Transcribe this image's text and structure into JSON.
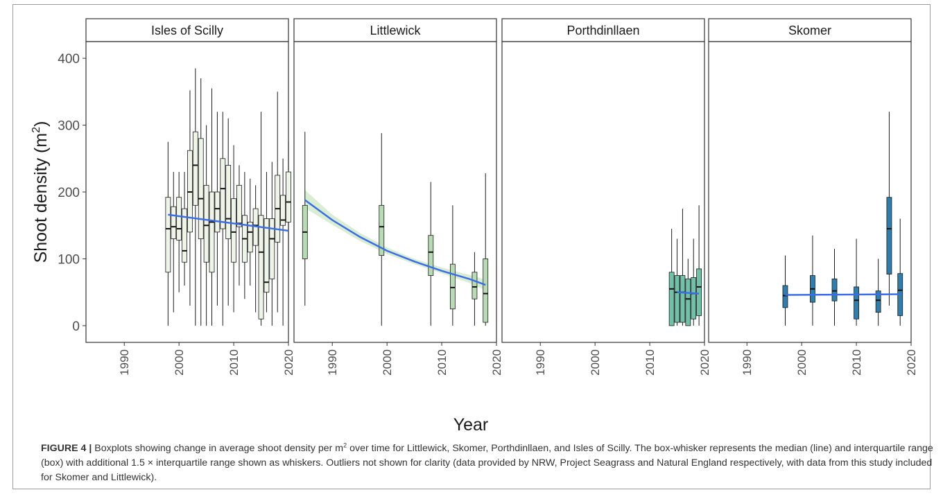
{
  "figure": {
    "ylabel": "Shoot density (m",
    "ylabel_sup": "2",
    "ylabel_close": ")",
    "xlabel": "Year"
  },
  "caption": {
    "label": "FIGURE 4 |",
    "text1": " Boxplots showing change in average shoot density per m",
    "sup": "2",
    "text2": " over time for Littlewick, Skomer, Porthdinllaen, and Isles of Scilly. The box-whisker represents the median (line) and interquartile range (box) with additional 1.5 × interquartile range shown as whiskers. Outliers not shown for clarity (data provided by NRW, Project Seagrass and Natural England respectively, with data from this study included for Skomer and Littlewick)."
  },
  "colors": {
    "trend": "#3a6ee8",
    "ribbon": "#cfe8c8",
    "Isles of Scilly": "#eef4e8",
    "Littlewick": "#b7dcb4",
    "Porthdinllaen": "#6fc2a8",
    "Skomer": "#2e7fae"
  },
  "chart_data": {
    "type": "box",
    "xlabel": "Year",
    "ylabel": "Shoot density (m2)",
    "xlim": [
      1983,
      2020
    ],
    "ylim": [
      -25,
      425
    ],
    "x_ticks": [
      1990,
      2000,
      2010,
      2020
    ],
    "y_ticks": [
      0,
      100,
      200,
      300,
      400
    ],
    "grid": false,
    "panels": [
      {
        "name": "Isles of Scilly",
        "boxes": [
          {
            "x": 1998,
            "min": 0,
            "q1": 80,
            "median": 145,
            "q3": 192,
            "max": 275
          },
          {
            "x": 1999,
            "min": 20,
            "q1": 130,
            "median": 148,
            "q3": 178,
            "max": 230
          },
          {
            "x": 2000,
            "min": 50,
            "q1": 128,
            "median": 145,
            "q3": 192,
            "max": 230
          },
          {
            "x": 2001,
            "min": 60,
            "q1": 95,
            "median": 112,
            "q3": 175,
            "max": 230
          },
          {
            "x": 2002,
            "min": 30,
            "q1": 140,
            "median": 200,
            "q3": 262,
            "max": 352
          },
          {
            "x": 2003,
            "min": 0,
            "q1": 180,
            "median": 240,
            "q3": 290,
            "max": 385
          },
          {
            "x": 2004,
            "min": 0,
            "q1": 130,
            "median": 190,
            "q3": 280,
            "max": 370
          },
          {
            "x": 2005,
            "min": 0,
            "q1": 95,
            "median": 150,
            "q3": 210,
            "max": 300
          },
          {
            "x": 2006,
            "min": 0,
            "q1": 80,
            "median": 155,
            "q3": 200,
            "max": 355
          },
          {
            "x": 2007,
            "min": 30,
            "q1": 140,
            "median": 175,
            "q3": 200,
            "max": 320
          },
          {
            "x": 2008,
            "min": 0,
            "q1": 145,
            "median": 205,
            "q3": 250,
            "max": 320
          },
          {
            "x": 2009,
            "min": 30,
            "q1": 130,
            "median": 160,
            "q3": 240,
            "max": 310
          },
          {
            "x": 2010,
            "min": 20,
            "q1": 95,
            "median": 140,
            "q3": 190,
            "max": 270
          },
          {
            "x": 2011,
            "min": 60,
            "q1": 148,
            "median": 153,
            "q3": 210,
            "max": 240
          },
          {
            "x": 2012,
            "min": 40,
            "q1": 95,
            "median": 130,
            "q3": 165,
            "max": 230
          },
          {
            "x": 2013,
            "min": 60,
            "q1": 110,
            "median": 140,
            "q3": 155,
            "max": 220
          },
          {
            "x": 2014,
            "min": 20,
            "q1": 120,
            "median": 150,
            "q3": 175,
            "max": 210
          },
          {
            "x": 2015,
            "min": 0,
            "q1": 10,
            "median": 110,
            "q3": 165,
            "max": 320
          },
          {
            "x": 2016,
            "min": 20,
            "q1": 50,
            "median": 65,
            "q3": 160,
            "max": 230
          },
          {
            "x": 2017,
            "min": 0,
            "q1": 70,
            "median": 130,
            "q3": 160,
            "max": 245
          },
          {
            "x": 2018,
            "min": 20,
            "q1": 125,
            "median": 175,
            "q3": 225,
            "max": 350
          },
          {
            "x": 2019,
            "min": 0,
            "q1": 150,
            "median": 158,
            "q3": 195,
            "max": 250
          },
          {
            "x": 2020,
            "min": 80,
            "q1": 155,
            "median": 185,
            "q3": 230,
            "max": 275
          }
        ],
        "trend": [
          {
            "x": 1998,
            "y": 166
          },
          {
            "x": 2020,
            "y": 142
          }
        ],
        "ribbon": null
      },
      {
        "name": "Littlewick",
        "boxes": [
          {
            "x": 1985,
            "min": 30,
            "q1": 100,
            "median": 140,
            "q3": 180,
            "max": 290
          },
          {
            "x": 1999,
            "min": 0,
            "q1": 105,
            "median": 148,
            "q3": 180,
            "max": 288
          },
          {
            "x": 2008,
            "min": 0,
            "q1": 75,
            "median": 110,
            "q3": 135,
            "max": 215
          },
          {
            "x": 2012,
            "min": 0,
            "q1": 25,
            "median": 57,
            "q3": 92,
            "max": 180
          },
          {
            "x": 2016,
            "min": 0,
            "q1": 40,
            "median": 58,
            "q3": 80,
            "max": 110
          },
          {
            "x": 2018,
            "min": 0,
            "q1": 5,
            "median": 48,
            "q3": 100,
            "max": 228
          }
        ],
        "trend": [
          {
            "x": 1985,
            "y": 188
          },
          {
            "x": 1990,
            "y": 158
          },
          {
            "x": 1995,
            "y": 133
          },
          {
            "x": 2000,
            "y": 112
          },
          {
            "x": 2005,
            "y": 96
          },
          {
            "x": 2010,
            "y": 82
          },
          {
            "x": 2015,
            "y": 70
          },
          {
            "x": 2018,
            "y": 61
          }
        ],
        "ribbon": [
          {
            "x": 1985,
            "lo": 176,
            "hi": 203
          },
          {
            "x": 1990,
            "lo": 151,
            "hi": 166
          },
          {
            "x": 1995,
            "lo": 127,
            "hi": 139
          },
          {
            "x": 2000,
            "lo": 107,
            "hi": 117
          },
          {
            "x": 2005,
            "lo": 92,
            "hi": 100
          },
          {
            "x": 2010,
            "lo": 78,
            "hi": 87
          },
          {
            "x": 2015,
            "lo": 64,
            "hi": 76
          },
          {
            "x": 2018,
            "lo": 53,
            "hi": 69
          }
        ]
      },
      {
        "name": "Porthdinllaen",
        "boxes": [
          {
            "x": 2014,
            "min": 0,
            "q1": 0,
            "median": 55,
            "q3": 80,
            "max": 145
          },
          {
            "x": 2015,
            "min": 0,
            "q1": 5,
            "median": 50,
            "q3": 75,
            "max": 130
          },
          {
            "x": 2016,
            "min": 0,
            "q1": 5,
            "median": 50,
            "q3": 75,
            "max": 175
          },
          {
            "x": 2017,
            "min": 0,
            "q1": 0,
            "median": 40,
            "q3": 70,
            "max": 100
          },
          {
            "x": 2018,
            "min": 0,
            "q1": 10,
            "median": 48,
            "q3": 72,
            "max": 130
          },
          {
            "x": 2019,
            "min": 0,
            "q1": 15,
            "median": 58,
            "q3": 85,
            "max": 180
          }
        ],
        "trend": [
          {
            "x": 2015,
            "y": 50
          },
          {
            "x": 2019,
            "y": 48
          }
        ],
        "ribbon": null
      },
      {
        "name": "Skomer",
        "boxes": [
          {
            "x": 1997,
            "min": 0,
            "q1": 27,
            "median": 45,
            "q3": 60,
            "max": 105
          },
          {
            "x": 2002,
            "min": 0,
            "q1": 35,
            "median": 55,
            "q3": 75,
            "max": 135
          },
          {
            "x": 2006,
            "min": 0,
            "q1": 37,
            "median": 52,
            "q3": 70,
            "max": 115
          },
          {
            "x": 2010,
            "min": 0,
            "q1": 10,
            "median": 38,
            "q3": 58,
            "max": 130
          },
          {
            "x": 2014,
            "min": 0,
            "q1": 20,
            "median": 38,
            "q3": 52,
            "max": 100
          },
          {
            "x": 2016,
            "min": 30,
            "q1": 77,
            "median": 145,
            "q3": 192,
            "max": 320
          },
          {
            "x": 2018,
            "min": 0,
            "q1": 15,
            "median": 53,
            "q3": 78,
            "max": 160
          }
        ],
        "trend": [
          {
            "x": 1997,
            "y": 46
          },
          {
            "x": 2018,
            "y": 47
          }
        ],
        "ribbon": null
      }
    ]
  }
}
